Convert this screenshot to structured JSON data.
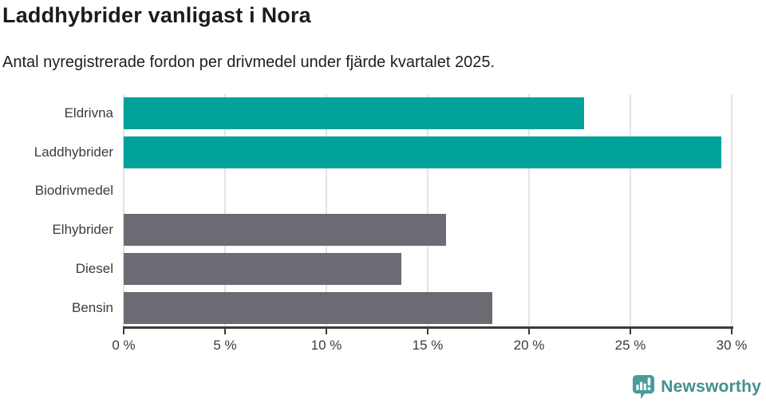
{
  "header": {
    "title": "Laddhybrider vanligast i Nora",
    "subtitle": "Antal nyregistrerade fordon per drivmedel under fjärde kvartalet 2025."
  },
  "chart_data": {
    "type": "bar",
    "orientation": "horizontal",
    "title": "Laddhybrider vanligast i Nora",
    "subtitle": "Antal nyregistrerade fordon per drivmedel under fjärde kvartalet 2025.",
    "categories": [
      "Eldrivna",
      "Laddhybrider",
      "Biodrivmedel",
      "Elhybrider",
      "Diesel",
      "Bensin"
    ],
    "values": [
      22.7,
      29.5,
      0,
      15.9,
      13.7,
      18.2
    ],
    "unit": "%",
    "xlabel": "",
    "ylabel": "",
    "xlim": [
      0,
      30
    ],
    "xticks": [
      0,
      5,
      10,
      15,
      20,
      25,
      30
    ],
    "tick_labels": [
      "0 %",
      "5 %",
      "10 %",
      "15 %",
      "20 %",
      "25 %",
      "30 %"
    ],
    "grid": true,
    "legend": "none",
    "highlighted_categories": [
      "Eldrivna",
      "Laddhybrider"
    ],
    "highlight_color": "#00a29a",
    "default_color": "#6c6a72"
  },
  "footer": {
    "brand": "Newsworthy",
    "logo_icon": "bar-chart-speech-bubble",
    "brand_color": "#44908f"
  }
}
